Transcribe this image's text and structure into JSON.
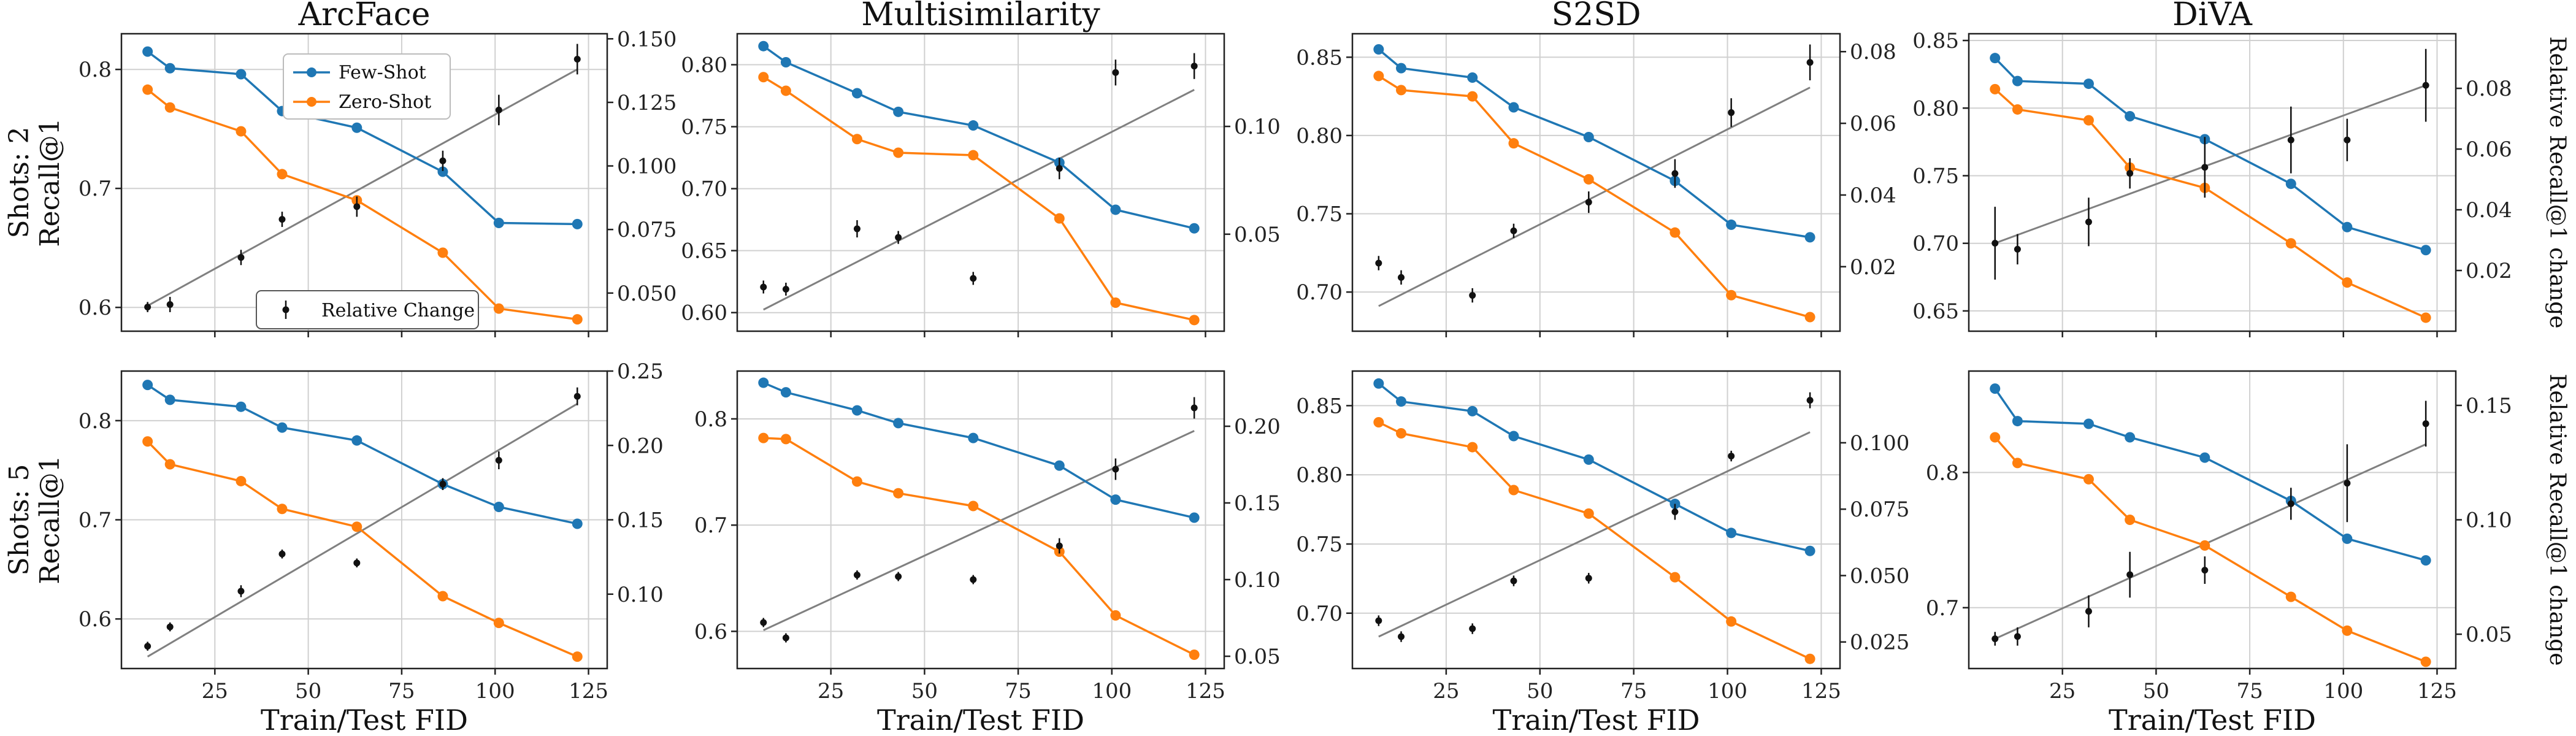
{
  "colors": {
    "few_shot": "#1f77b4",
    "zero_shot": "#ff7f0e",
    "relative": "#111111",
    "fit": "#808080"
  },
  "legend": {
    "few_shot": "Few-Shot",
    "zero_shot": "Zero-Shot",
    "relative": "Relative Change"
  },
  "xlabel": "Train/Test FID",
  "row_labels": [
    {
      "shots": "Shots: 2",
      "metric": "Recall@1"
    },
    {
      "shots": "Shots: 5",
      "metric": "Recall@1"
    }
  ],
  "right_label": "Relative Recall@1 change",
  "chart_data": [
    {
      "type": "line",
      "title": "ArcFace",
      "shots": 2,
      "x": [
        7,
        13,
        32,
        43,
        63,
        86,
        101,
        122
      ],
      "xlim": [
        0,
        130
      ],
      "xticks": [
        25,
        50,
        75,
        100,
        125
      ],
      "ylim": [
        0.58,
        0.83
      ],
      "yticks": [
        0.6,
        0.7,
        0.8
      ],
      "series": [
        {
          "name": "Few-Shot",
          "values": [
            0.815,
            0.801,
            0.796,
            0.765,
            0.751,
            0.714,
            0.671,
            0.67
          ]
        },
        {
          "name": "Zero-Shot",
          "values": [
            0.783,
            0.768,
            0.748,
            0.712,
            0.69,
            0.646,
            0.599,
            0.59
          ]
        }
      ],
      "relative": {
        "ylim": [
          0.035,
          0.152
        ],
        "yticks": [
          0.05,
          0.075,
          0.1,
          0.125,
          0.15
        ],
        "yticklabels": [
          "0.050",
          "0.075",
          "0.100",
          "0.125",
          "0.150"
        ],
        "values": [
          0.0445,
          0.0455,
          0.064,
          0.079,
          0.084,
          0.102,
          0.122,
          0.142
        ],
        "errors": [
          0.002,
          0.003,
          0.003,
          0.003,
          0.004,
          0.004,
          0.006,
          0.006
        ],
        "fit": [
          0.045,
          0.138
        ]
      }
    },
    {
      "type": "line",
      "title": "Multisimilarity",
      "shots": 2,
      "x": [
        7,
        13,
        32,
        43,
        63,
        86,
        101,
        122
      ],
      "xlim": [
        0,
        130
      ],
      "xticks": [
        25,
        50,
        75,
        100,
        125
      ],
      "ylim": [
        0.585,
        0.825
      ],
      "yticks": [
        0.6,
        0.65,
        0.7,
        0.75,
        0.8
      ],
      "yticklabels": [
        "0.60",
        "0.65",
        "0.70",
        "0.75",
        "0.80"
      ],
      "series": [
        {
          "name": "Few-Shot",
          "values": [
            0.815,
            0.802,
            0.777,
            0.762,
            0.751,
            0.721,
            0.683,
            0.668
          ]
        },
        {
          "name": "Zero-Shot",
          "values": [
            0.79,
            0.779,
            0.74,
            0.729,
            0.727,
            0.676,
            0.608,
            0.594
          ]
        }
      ],
      "relative": {
        "ylim": [
          0.005,
          0.143
        ],
        "yticks": [
          0.05,
          0.1
        ],
        "yticklabels": [
          "0.05",
          "0.10"
        ],
        "values": [
          0.0255,
          0.0245,
          0.0525,
          0.0485,
          0.0295,
          0.0805,
          0.125,
          0.128
        ],
        "errors": [
          0.003,
          0.003,
          0.004,
          0.003,
          0.003,
          0.005,
          0.006,
          0.006
        ],
        "fit": [
          0.015,
          0.117
        ]
      }
    },
    {
      "type": "line",
      "title": "S2SD",
      "shots": 2,
      "x": [
        7,
        13,
        32,
        43,
        63,
        86,
        101,
        122
      ],
      "xlim": [
        0,
        130
      ],
      "xticks": [
        25,
        50,
        75,
        100,
        125
      ],
      "ylim": [
        0.675,
        0.865
      ],
      "yticks": [
        0.7,
        0.75,
        0.8,
        0.85
      ],
      "yticklabels": [
        "0.70",
        "0.75",
        "0.80",
        "0.85"
      ],
      "series": [
        {
          "name": "Few-Shot",
          "values": [
            0.855,
            0.843,
            0.837,
            0.818,
            0.799,
            0.771,
            0.743,
            0.735
          ]
        },
        {
          "name": "Zero-Shot",
          "values": [
            0.838,
            0.829,
            0.825,
            0.795,
            0.772,
            0.738,
            0.698,
            0.684
          ]
        }
      ],
      "relative": {
        "ylim": [
          0.002,
          0.085
        ],
        "yticks": [
          0.02,
          0.04,
          0.06,
          0.08
        ],
        "yticklabels": [
          "0.02",
          "0.04",
          "0.06",
          "0.08"
        ],
        "values": [
          0.021,
          0.017,
          0.012,
          0.03,
          0.038,
          0.046,
          0.063,
          0.077
        ],
        "errors": [
          0.002,
          0.002,
          0.002,
          0.002,
          0.003,
          0.004,
          0.004,
          0.005
        ],
        "fit": [
          0.009,
          0.07
        ]
      }
    },
    {
      "type": "line",
      "title": "DiVA",
      "shots": 2,
      "x": [
        7,
        13,
        32,
        43,
        63,
        86,
        101,
        122
      ],
      "xlim": [
        0,
        130
      ],
      "xticks": [
        25,
        50,
        75,
        100,
        125
      ],
      "ylim": [
        0.635,
        0.855
      ],
      "yticks": [
        0.65,
        0.7,
        0.75,
        0.8,
        0.85
      ],
      "yticklabels": [
        "0.65",
        "0.70",
        "0.75",
        "0.80",
        "0.85"
      ],
      "series": [
        {
          "name": "Few-Shot",
          "values": [
            0.837,
            0.82,
            0.818,
            0.794,
            0.777,
            0.744,
            0.712,
            0.695
          ]
        },
        {
          "name": "Zero-Shot",
          "values": [
            0.814,
            0.799,
            0.791,
            0.756,
            0.741,
            0.7,
            0.671,
            0.645
          ]
        }
      ],
      "relative": {
        "ylim": [
          0.0,
          0.098
        ],
        "yticks": [
          0.02,
          0.04,
          0.06,
          0.08
        ],
        "yticklabels": [
          "0.02",
          "0.04",
          "0.06",
          "0.08"
        ],
        "values": [
          0.029,
          0.027,
          0.036,
          0.052,
          0.054,
          0.063,
          0.063,
          0.081
        ],
        "errors": [
          0.012,
          0.005,
          0.008,
          0.005,
          0.01,
          0.011,
          0.007,
          0.012
        ],
        "fit": [
          0.029,
          0.081
        ]
      }
    },
    {
      "type": "line",
      "title": "ArcFace",
      "shots": 5,
      "x": [
        7,
        13,
        32,
        43,
        63,
        86,
        101,
        122
      ],
      "xlim": [
        0,
        130
      ],
      "xticks": [
        25,
        50,
        75,
        100,
        125
      ],
      "ylim": [
        0.55,
        0.85
      ],
      "yticks": [
        0.6,
        0.7,
        0.8
      ],
      "series": [
        {
          "name": "Few-Shot",
          "values": [
            0.836,
            0.821,
            0.814,
            0.793,
            0.78,
            0.736,
            0.713,
            0.696
          ]
        },
        {
          "name": "Zero-Shot",
          "values": [
            0.779,
            0.756,
            0.739,
            0.711,
            0.693,
            0.623,
            0.596,
            0.562
          ]
        }
      ],
      "relative": {
        "ylim": [
          0.05,
          0.25
        ],
        "yticks": [
          0.1,
          0.15,
          0.2,
          0.25
        ],
        "yticklabels": [
          "0.10",
          "0.15",
          "0.20",
          "0.25"
        ],
        "values": [
          0.065,
          0.078,
          0.102,
          0.127,
          0.121,
          0.174,
          0.19,
          0.233
        ],
        "errors": [
          0.003,
          0.003,
          0.004,
          0.003,
          0.003,
          0.004,
          0.006,
          0.006
        ],
        "fit": [
          0.058,
          0.228
        ]
      }
    },
    {
      "type": "line",
      "title": "Multisimilarity",
      "shots": 5,
      "x": [
        7,
        13,
        32,
        43,
        63,
        86,
        101,
        122
      ],
      "xlim": [
        0,
        130
      ],
      "xticks": [
        25,
        50,
        75,
        100,
        125
      ],
      "ylim": [
        0.565,
        0.845
      ],
      "yticks": [
        0.6,
        0.7,
        0.8
      ],
      "series": [
        {
          "name": "Few-Shot",
          "values": [
            0.834,
            0.825,
            0.808,
            0.796,
            0.782,
            0.756,
            0.724,
            0.707
          ]
        },
        {
          "name": "Zero-Shot",
          "values": [
            0.782,
            0.781,
            0.741,
            0.73,
            0.718,
            0.675,
            0.615,
            0.578
          ]
        }
      ],
      "relative": {
        "ylim": [
          0.042,
          0.236
        ],
        "yticks": [
          0.05,
          0.1,
          0.15,
          0.2
        ],
        "yticklabels": [
          "0.05",
          "0.10",
          "0.15",
          "0.20"
        ],
        "values": [
          0.072,
          0.062,
          0.103,
          0.102,
          0.1,
          0.122,
          0.172,
          0.212
        ],
        "errors": [
          0.003,
          0.003,
          0.003,
          0.003,
          0.003,
          0.005,
          0.007,
          0.007
        ],
        "fit": [
          0.067,
          0.197
        ]
      }
    },
    {
      "type": "line",
      "title": "S2SD",
      "shots": 5,
      "x": [
        7,
        13,
        32,
        43,
        63,
        86,
        101,
        122
      ],
      "xlim": [
        0,
        130
      ],
      "xticks": [
        25,
        50,
        75,
        100,
        125
      ],
      "ylim": [
        0.66,
        0.875
      ],
      "yticks": [
        0.7,
        0.75,
        0.8,
        0.85
      ],
      "yticklabels": [
        "0.70",
        "0.75",
        "0.80",
        "0.85"
      ],
      "series": [
        {
          "name": "Few-Shot",
          "values": [
            0.866,
            0.853,
            0.846,
            0.828,
            0.811,
            0.779,
            0.758,
            0.745
          ]
        },
        {
          "name": "Zero-Shot",
          "values": [
            0.838,
            0.83,
            0.82,
            0.789,
            0.772,
            0.726,
            0.694,
            0.667
          ]
        }
      ],
      "relative": {
        "ylim": [
          0.015,
          0.127
        ],
        "yticks": [
          0.025,
          0.05,
          0.075,
          0.1
        ],
        "yticklabels": [
          "0.025",
          "0.050",
          "0.075",
          "0.100"
        ],
        "values": [
          0.033,
          0.027,
          0.03,
          0.048,
          0.049,
          0.074,
          0.095,
          0.116
        ],
        "errors": [
          0.002,
          0.002,
          0.002,
          0.002,
          0.002,
          0.003,
          0.002,
          0.003
        ],
        "fit": [
          0.027,
          0.104
        ]
      }
    },
    {
      "type": "line",
      "title": "DiVA",
      "shots": 5,
      "x": [
        7,
        13,
        32,
        43,
        63,
        86,
        101,
        122
      ],
      "xlim": [
        0,
        130
      ],
      "xticks": [
        25,
        50,
        75,
        100,
        125
      ],
      "ylim": [
        0.655,
        0.875
      ],
      "yticks": [
        0.7,
        0.8
      ],
      "series": [
        {
          "name": "Few-Shot",
          "values": [
            0.862,
            0.838,
            0.836,
            0.826,
            0.811,
            0.779,
            0.751,
            0.735
          ]
        },
        {
          "name": "Zero-Shot",
          "values": [
            0.826,
            0.807,
            0.795,
            0.765,
            0.746,
            0.708,
            0.683,
            0.66
          ]
        }
      ],
      "relative": {
        "ylim": [
          0.035,
          0.165
        ],
        "yticks": [
          0.05,
          0.1,
          0.15
        ],
        "yticklabels": [
          "0.05",
          "0.10",
          "0.15"
        ],
        "values": [
          0.048,
          0.049,
          0.06,
          0.076,
          0.078,
          0.107,
          0.116,
          0.142
        ],
        "errors": [
          0.003,
          0.004,
          0.007,
          0.01,
          0.006,
          0.007,
          0.017,
          0.01
        ],
        "fit": [
          0.048,
          0.133
        ]
      }
    }
  ]
}
